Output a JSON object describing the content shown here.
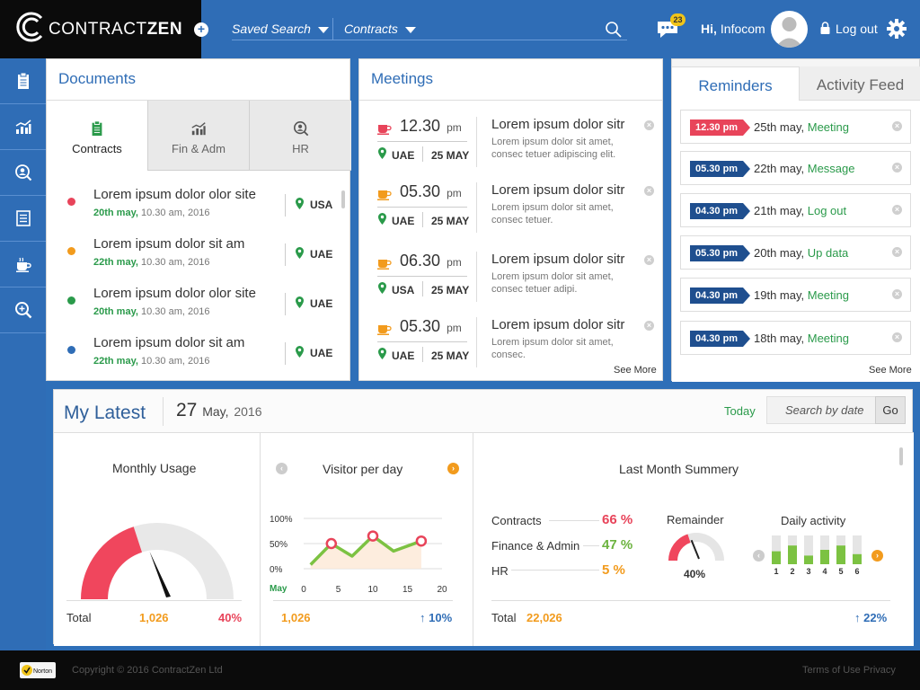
{
  "header": {
    "logo_text_light": "CONTRACT",
    "logo_text_bold": "ZEN",
    "nav_saved_search": "Saved Search",
    "nav_contracts": "Contracts",
    "notification_count": "23",
    "greeting_hi": "Hi,",
    "user_name": "Infocom",
    "logout_label": "Log out"
  },
  "sidebar": {
    "icons": [
      "clipboard-icon",
      "chart-icon",
      "user-search-icon",
      "list-icon",
      "coffee-icon",
      "zoom-icon"
    ]
  },
  "documents": {
    "title": "Documents",
    "tabs": [
      {
        "label": "Contracts",
        "icon": "clipboard-icon",
        "active": true
      },
      {
        "label": "Fin & Adm",
        "icon": "chart-icon",
        "active": false
      },
      {
        "label": "HR",
        "icon": "user-search-icon",
        "active": false
      }
    ],
    "items": [
      {
        "title": "Lorem ipsum dolor  olor site",
        "date": "20th may,",
        "time": " 10.30 am, 2016",
        "country": "USA",
        "dot_color": "#e8445a"
      },
      {
        "title": "Lorem ipsum dolor sit am",
        "date": "22th may,",
        "time": " 10.30 am, 2016",
        "country": "UAE",
        "dot_color": "#f29b1d"
      },
      {
        "title": "Lorem ipsum dolor  olor site",
        "date": "20th may,",
        "time": " 10.30 am, 2016",
        "country": "UAE",
        "dot_color": "#2a9a4a"
      },
      {
        "title": "Lorem ipsum dolor sit am",
        "date": "22th may,",
        "time": " 10.30 am, 2016",
        "country": "UAE",
        "dot_color": "#2f6db6"
      }
    ]
  },
  "meetings": {
    "title": "Meetings",
    "see_more": "See More",
    "items": [
      {
        "time": "12.30",
        "ampm": "pm",
        "country": "UAE",
        "date": "25 MAY",
        "heading": "Lorem ipsum dolor sitr",
        "desc": "Lorem ipsum dolor sit amet, consec tetuer adipiscing elit.",
        "cup_color": "#e8445a"
      },
      {
        "time": "05.30",
        "ampm": "pm",
        "country": "UAE",
        "date": "25 MAY",
        "heading": "Lorem ipsum dolor sitr",
        "desc": "Lorem ipsum dolor sit amet, consec tetuer.",
        "cup_color": "#f29b1d"
      },
      {
        "time": "06.30",
        "ampm": "pm",
        "country": "USA",
        "date": "25 MAY",
        "heading": "Lorem ipsum dolor sitr",
        "desc": "Lorem ipsum dolor sit amet, consec tetuer adipi.",
        "cup_color": "#f29b1d"
      },
      {
        "time": "05.30",
        "ampm": "pm",
        "country": "UAE",
        "date": "25 MAY",
        "heading": "Lorem ipsum dolor sitr",
        "desc": "Lorem ipsum dolor sit amet, consec.",
        "cup_color": "#f29b1d"
      }
    ]
  },
  "reminders": {
    "tab_reminders": "Reminders",
    "tab_activity": "Activity Feed",
    "see_more": "See More",
    "items": [
      {
        "time": "12.30 pm",
        "date": "25th may,",
        "type": "Meeting",
        "badge_color": "#e8445a"
      },
      {
        "time": "05.30 pm",
        "date": "22th may,",
        "type": "Message",
        "badge_color": "#1f4f8f"
      },
      {
        "time": "04.30 pm",
        "date": "21th may,",
        "type": "Log out",
        "badge_color": "#1f4f8f"
      },
      {
        "time": "05.30 pm",
        "date": "20th may,",
        "type": "Up data",
        "badge_color": "#1f4f8f"
      },
      {
        "time": "04.30 pm",
        "date": "19th may,",
        "type": "Meeting",
        "badge_color": "#1f4f8f"
      },
      {
        "time": "04.30 pm",
        "date": "18th may,",
        "type": "Meeting",
        "badge_color": "#1f4f8f"
      }
    ]
  },
  "latest": {
    "title": "My Latest",
    "date_day": "27",
    "date_month": "May,",
    "date_year": "2016",
    "today_label": "Today",
    "search_placeholder": "Search by date",
    "go_label": "Go",
    "monthly_usage": {
      "title": "Monthly Usage",
      "total_label": "Total",
      "total_value": "1,026",
      "percent": "40%",
      "gauge_fraction": 0.4
    },
    "visitors": {
      "title": "Visitor per day",
      "total_value": "1,026",
      "change": "↑ 10%"
    },
    "summary": {
      "title": "Last Month Summery",
      "rows": [
        {
          "label": "Contracts",
          "value": "66 %",
          "color": "#e8445a"
        },
        {
          "label": "Finance & Admin",
          "value": "47 %",
          "color": "#6cb33f"
        },
        {
          "label": "HR",
          "value": "5 %",
          "color": "#f29b1d"
        }
      ],
      "remainder_label": "Remainder",
      "remainder_value": "40%",
      "remainder_fraction": 0.4,
      "daily_label": "Daily activity",
      "daily_days": [
        "1",
        "2",
        "3",
        "4",
        "5",
        "6"
      ],
      "daily_values": [
        0.45,
        0.65,
        0.3,
        0.5,
        0.65,
        0.35
      ],
      "total_label": "Total",
      "total_value": "22,026",
      "change": "↑ 22%"
    }
  },
  "chart_data": {
    "type": "line",
    "title": "Visitor per day",
    "xlabel": "May",
    "x_ticks": [
      "0",
      "5",
      "10",
      "15",
      "20"
    ],
    "y_ticks": [
      "0%",
      "50%",
      "100%"
    ],
    "ylim": [
      0,
      100
    ],
    "xlim": [
      0,
      20
    ],
    "x": [
      1,
      4,
      7,
      10,
      13,
      17
    ],
    "values": [
      8,
      50,
      25,
      65,
      35,
      55
    ],
    "highlighted": [
      1,
      3,
      5
    ]
  },
  "footer": {
    "badge": "Norton",
    "copyright": "Copyright © 2016 ContractZen Ltd",
    "terms": "Terms of Use Privacy"
  }
}
